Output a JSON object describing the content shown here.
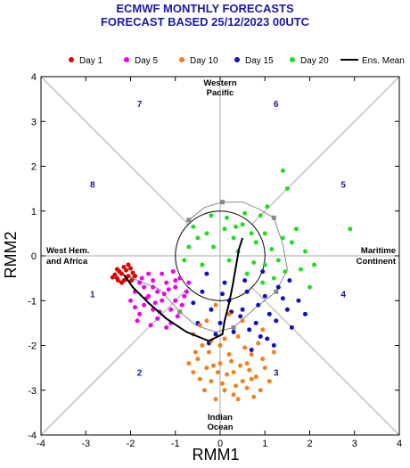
{
  "title": {
    "line1": "ECMWF MONTHLY FORECASTS",
    "line2": "FORECAST  BASED 25/12/2023 00UTC"
  },
  "colors": {
    "title": "#1a1aa8",
    "day1": "#e00000",
    "day5": "#ee00ee",
    "day10": "#f08020",
    "day15": "#1010c0",
    "day20": "#22dd22",
    "mean": "#000000",
    "observed": "#888888"
  },
  "regions": {
    "top": [
      "Western",
      "Pacific"
    ],
    "bottom": [
      "Indian",
      "Ocean"
    ],
    "left": [
      "West Hem.",
      "and Africa"
    ],
    "right": [
      "Maritime",
      "Continent"
    ]
  },
  "chart_data": {
    "type": "scatter",
    "xlabel": "RMM1",
    "ylabel": "RMM2",
    "xlim": [
      -4,
      4
    ],
    "ylim": [
      -4,
      4
    ],
    "xticks": [
      "-4",
      "-3",
      "-2",
      "-1",
      "0",
      "1",
      "2",
      "3",
      "4"
    ],
    "yticks": [
      "-4",
      "-3",
      "-2",
      "-1",
      "0",
      "1",
      "2",
      "3",
      "4"
    ],
    "phase_labels": [
      {
        "text": "1",
        "x": -2.85,
        "y": -0.85
      },
      {
        "text": "2",
        "x": -1.8,
        "y": -2.6
      },
      {
        "text": "3",
        "x": 1.25,
        "y": -2.6
      },
      {
        "text": "4",
        "x": 2.75,
        "y": -0.85
      },
      {
        "text": "5",
        "x": 2.75,
        "y": 1.6
      },
      {
        "text": "6",
        "x": 1.25,
        "y": 3.4
      },
      {
        "text": "7",
        "x": -1.8,
        "y": 3.4
      },
      {
        "text": "8",
        "x": -2.85,
        "y": 1.6
      }
    ],
    "legend": [
      {
        "label": "Day 1",
        "series": "day1",
        "kind": "dot"
      },
      {
        "label": "Day 5",
        "series": "day5",
        "kind": "dot"
      },
      {
        "label": "Day 10",
        "series": "day10",
        "kind": "dot"
      },
      {
        "label": "Day 15",
        "series": "day15",
        "kind": "dot"
      },
      {
        "label": "Day 20",
        "series": "day20",
        "kind": "dot"
      },
      {
        "label": "Ens. Mean",
        "series": "mean",
        "kind": "line"
      }
    ],
    "unit_circle": true,
    "observed": [
      [
        -1.95,
        -0.5
      ],
      [
        -1.35,
        -0.75
      ],
      [
        -0.9,
        -1.25
      ],
      [
        -0.55,
        -1.55
      ],
      [
        -0.1,
        -1.7
      ],
      [
        0.3,
        -1.6
      ],
      [
        0.8,
        -1.15
      ],
      [
        1.25,
        -0.8
      ],
      [
        1.5,
        -0.3
      ],
      [
        1.4,
        0.25
      ],
      [
        1.2,
        0.85
      ],
      [
        0.85,
        1.05
      ],
      [
        0.5,
        1.2
      ],
      [
        0.05,
        1.2
      ],
      [
        -0.35,
        1.08
      ],
      [
        -0.7,
        0.8
      ]
    ],
    "observed_squares": [
      [
        -1.95,
        -0.5
      ],
      [
        -0.9,
        -1.25
      ],
      [
        0.3,
        -1.6
      ],
      [
        1.25,
        -0.8
      ],
      [
        1.2,
        0.85
      ],
      [
        0.05,
        1.2
      ],
      [
        -0.7,
        0.8
      ]
    ],
    "series": {
      "day1": [
        [
          -2.1,
          -0.32
        ],
        [
          -2.2,
          -0.4
        ],
        [
          -2.05,
          -0.45
        ],
        [
          -2.3,
          -0.5
        ],
        [
          -2.15,
          -0.55
        ],
        [
          -1.95,
          -0.38
        ],
        [
          -2.25,
          -0.35
        ],
        [
          -2.0,
          -0.28
        ],
        [
          -2.35,
          -0.42
        ],
        [
          -2.1,
          -0.52
        ],
        [
          -1.9,
          -0.45
        ],
        [
          -2.2,
          -0.6
        ],
        [
          -2.05,
          -0.2
        ],
        [
          -2.3,
          -0.3
        ],
        [
          -2.15,
          -0.25
        ],
        [
          -2.4,
          -0.48
        ],
        [
          -1.98,
          -0.55
        ],
        [
          -2.28,
          -0.55
        ]
      ],
      "day5": [
        [
          -1.8,
          -0.6
        ],
        [
          -1.5,
          -0.55
        ],
        [
          -1.2,
          -0.6
        ],
        [
          -1.0,
          -0.7
        ],
        [
          -1.6,
          -0.9
        ],
        [
          -1.3,
          -1.0
        ],
        [
          -1.1,
          -1.2
        ],
        [
          -1.7,
          -1.1
        ],
        [
          -1.9,
          -0.8
        ],
        [
          -1.4,
          -1.4
        ],
        [
          -1.2,
          -1.6
        ],
        [
          -0.9,
          -0.5
        ],
        [
          -0.8,
          -0.9
        ],
        [
          -1.5,
          -1.2
        ],
        [
          -1.8,
          -1.3
        ],
        [
          -1.3,
          -0.4
        ],
        [
          -1.0,
          -1.0
        ],
        [
          -0.7,
          -0.6
        ],
        [
          -1.6,
          -0.4
        ],
        [
          -1.4,
          -0.8
        ],
        [
          -2.0,
          -1.0
        ],
        [
          -1.1,
          -1.5
        ],
        [
          -1.7,
          -0.7
        ],
        [
          -1.25,
          -0.85
        ],
        [
          -0.95,
          -1.35
        ],
        [
          -1.55,
          -1.55
        ],
        [
          -1.85,
          -1.45
        ],
        [
          -1.05,
          -0.35
        ],
        [
          -1.75,
          -0.5
        ],
        [
          -1.45,
          -1.05
        ],
        [
          -1.15,
          -0.75
        ],
        [
          -0.85,
          -1.1
        ],
        [
          -1.35,
          -1.25
        ],
        [
          -1.65,
          -0.95
        ],
        [
          -1.9,
          -1.15
        ],
        [
          -1.0,
          -0.55
        ],
        [
          -0.75,
          -0.8
        ],
        [
          -1.5,
          -0.7
        ]
      ],
      "day10": [
        [
          -0.5,
          -2.3
        ],
        [
          -0.3,
          -2.5
        ],
        [
          0.0,
          -2.4
        ],
        [
          0.3,
          -2.6
        ],
        [
          0.5,
          -2.8
        ],
        [
          -0.2,
          -2.8
        ],
        [
          0.1,
          -3.0
        ],
        [
          0.6,
          -2.4
        ],
        [
          0.8,
          -2.7
        ],
        [
          -0.6,
          -2.6
        ],
        [
          0.2,
          -2.2
        ],
        [
          0.9,
          -3.0
        ],
        [
          -0.1,
          -3.2
        ],
        [
          0.4,
          -3.2
        ],
        [
          0.7,
          -2.2
        ],
        [
          -0.4,
          -2.0
        ],
        [
          0.0,
          -2.0
        ],
        [
          1.0,
          -2.5
        ],
        [
          -0.7,
          -2.4
        ],
        [
          0.35,
          -2.9
        ],
        [
          0.55,
          -2.05
        ],
        [
          -0.25,
          -2.15
        ],
        [
          0.15,
          -2.65
        ],
        [
          0.75,
          -3.15
        ],
        [
          -0.45,
          -2.75
        ],
        [
          0.95,
          -2.3
        ],
        [
          0.25,
          -2.35
        ],
        [
          -0.05,
          -2.6
        ],
        [
          0.65,
          -2.55
        ],
        [
          -0.35,
          -3.0
        ],
        [
          0.45,
          -2.45
        ],
        [
          1.1,
          -2.8
        ],
        [
          -0.15,
          -2.45
        ],
        [
          0.85,
          -1.95
        ],
        [
          0.05,
          -2.85
        ],
        [
          -0.55,
          -2.15
        ],
        [
          0.3,
          -3.1
        ],
        [
          0.6,
          -2.95
        ],
        [
          -0.2,
          -1.9
        ],
        [
          1.2,
          -2.15
        ],
        [
          0.1,
          -1.85
        ],
        [
          0.7,
          -2.75
        ],
        [
          -0.6,
          -1.75
        ],
        [
          0.4,
          -1.8
        ],
        [
          -0.3,
          -1.45
        ],
        [
          0.95,
          -1.65
        ],
        [
          0.2,
          -1.3
        ],
        [
          -0.1,
          -1.1
        ],
        [
          0.5,
          -1.45
        ],
        [
          -0.45,
          -1.55
        ]
      ],
      "day15": [
        [
          0.5,
          -1.2
        ],
        [
          0.8,
          -1.5
        ],
        [
          1.1,
          -1.3
        ],
        [
          0.2,
          -1.0
        ],
        [
          -0.2,
          -1.2
        ],
        [
          0.6,
          -0.8
        ],
        [
          1.3,
          -0.7
        ],
        [
          0.9,
          -1.8
        ],
        [
          -0.4,
          -0.8
        ],
        [
          0.0,
          -1.5
        ],
        [
          1.5,
          -1.2
        ],
        [
          0.3,
          -1.7
        ],
        [
          -0.5,
          -1.5
        ],
        [
          1.2,
          -2.0
        ],
        [
          0.7,
          -2.1
        ],
        [
          1.6,
          -1.6
        ],
        [
          0.1,
          -0.6
        ],
        [
          -0.3,
          -0.4
        ],
        [
          1.0,
          -0.9
        ],
        [
          0.45,
          -1.35
        ],
        [
          0.85,
          -1.1
        ],
        [
          1.4,
          -0.95
        ],
        [
          -0.1,
          -1.75
        ],
        [
          0.65,
          -1.65
        ],
        [
          1.25,
          -1.45
        ],
        [
          -0.6,
          -1.05
        ],
        [
          0.25,
          -1.25
        ],
        [
          1.05,
          -1.85
        ],
        [
          1.55,
          -0.55
        ],
        [
          0.05,
          -0.85
        ],
        [
          1.75,
          -1.0
        ],
        [
          -0.25,
          -1.95
        ],
        [
          0.55,
          -0.55
        ],
        [
          0.95,
          -0.35
        ],
        [
          1.9,
          -1.3
        ]
      ],
      "day20": [
        [
          -0.2,
          0.9
        ],
        [
          0.5,
          0.7
        ],
        [
          0.8,
          0.3
        ],
        [
          1.0,
          -0.2
        ],
        [
          -0.5,
          0.4
        ],
        [
          0.3,
          0.4
        ],
        [
          1.4,
          0.4
        ],
        [
          1.5,
          1.5
        ],
        [
          1.4,
          1.9
        ],
        [
          2.9,
          0.6
        ],
        [
          0.2,
          -0.1
        ],
        [
          -0.7,
          0.2
        ],
        [
          1.2,
          -0.5
        ],
        [
          2.0,
          -0.7
        ],
        [
          0.9,
          0.9
        ],
        [
          0.6,
          -0.4
        ],
        [
          -0.4,
          -0.2
        ],
        [
          1.8,
          -0.3
        ],
        [
          0.1,
          0.6
        ],
        [
          0.7,
          0.5
        ],
        [
          1.3,
          -0.1
        ],
        [
          -0.8,
          -0.1
        ],
        [
          0.4,
          0.1
        ],
        [
          1.0,
          0.5
        ],
        [
          1.6,
          0.3
        ],
        [
          -0.3,
          0.5
        ],
        [
          0.95,
          -0.6
        ],
        [
          1.7,
          0.6
        ],
        [
          2.1,
          -0.2
        ],
        [
          0.55,
          0.95
        ],
        [
          -0.6,
          0.65
        ],
        [
          1.15,
          0.15
        ],
        [
          0.15,
          0.85
        ],
        [
          1.45,
          -0.35
        ],
        [
          0.75,
          -0.15
        ],
        [
          1.9,
          0.1
        ],
        [
          -0.15,
          0.2
        ],
        [
          1.05,
          1.1
        ],
        [
          0.35,
          0.65
        ]
      ],
      "mean": [
        [
          -2.15,
          -0.42
        ],
        [
          -1.95,
          -0.7
        ],
        [
          -1.6,
          -1.05
        ],
        [
          -1.2,
          -1.4
        ],
        [
          -0.75,
          -1.7
        ],
        [
          -0.25,
          -1.9
        ],
        [
          0.05,
          -1.75
        ],
        [
          0.1,
          -1.45
        ],
        [
          0.2,
          -1.05
        ],
        [
          0.28,
          -0.65
        ],
        [
          0.35,
          -0.25
        ],
        [
          0.42,
          0.15
        ],
        [
          0.5,
          0.4
        ]
      ]
    }
  }
}
